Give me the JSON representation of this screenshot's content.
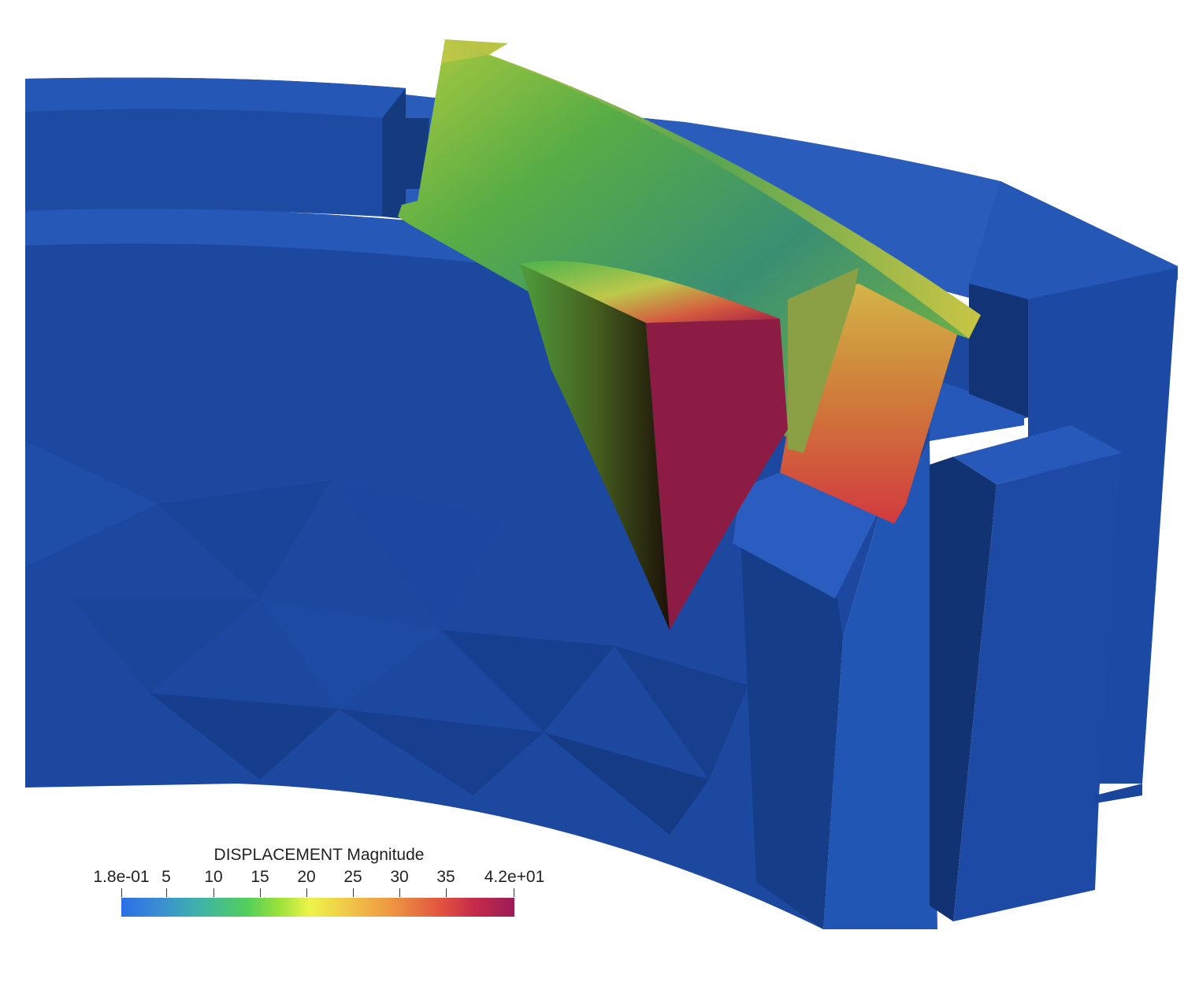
{
  "scene": {
    "description_kind": "3D finite element result view",
    "background": "#ffffff",
    "colors": {
      "ring_light": "#2557b7",
      "ring_mid": "#1d4ba3",
      "ring_dark": "#153a7e",
      "displacement_low": "#2b6fe8",
      "displacement_high": "#9b1d57"
    }
  },
  "legend": {
    "title": "DISPLACEMENT Magnitude",
    "ticks": [
      "1.8e-01",
      "5",
      "10",
      "15",
      "20",
      "25",
      "30",
      "35",
      "4.2e+01"
    ],
    "range": [
      0.18,
      42
    ],
    "tick_values": [
      0.18,
      5,
      10,
      15,
      20,
      25,
      30,
      35,
      42
    ]
  }
}
